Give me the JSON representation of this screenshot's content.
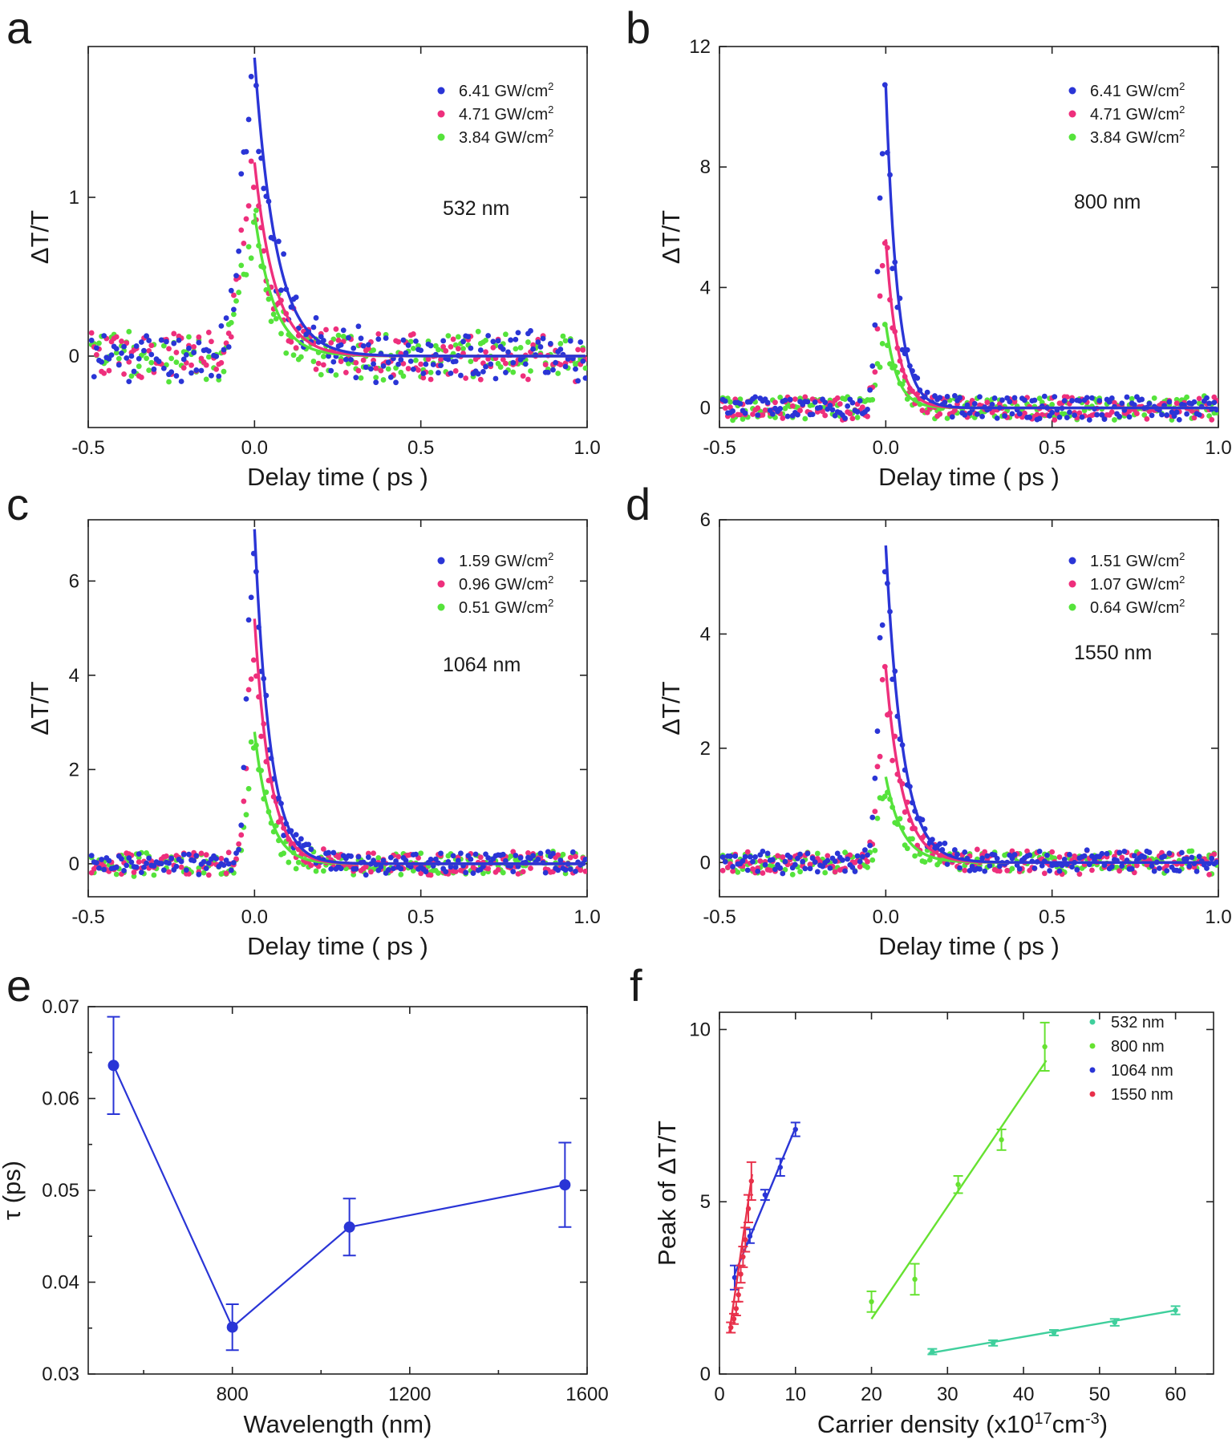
{
  "palette": {
    "blue": "#2a35d6",
    "pink": "#ee2f7c",
    "green": "#55e33b",
    "teal": "#3fcf9c",
    "lime": "#66e231",
    "red": "#e8304a",
    "axis": "#222222"
  },
  "chart_data": [
    {
      "id": "a",
      "type": "scatter",
      "panel_label": "a",
      "xlabel": "Delay time ( ps )",
      "ylabel": "ΔT/T",
      "xlim": [
        -0.5,
        1.0
      ],
      "ylim": [
        -0.45,
        1.95
      ],
      "xticks": [
        -0.5,
        0.0,
        0.5,
        1.0
      ],
      "xticklabels": [
        "-0.5",
        "0.0",
        "0.5",
        "1.0"
      ],
      "yticks": [
        0,
        1
      ],
      "yticklabels": [
        "0",
        "1"
      ],
      "wavelength_label": "532 nm",
      "series": [
        {
          "name": "6.41 GW/cm",
          "sup": "2",
          "color": "blue",
          "peak": 1.88,
          "tau": 0.065,
          "rise": 0.055,
          "noise": 0.14,
          "seed": 11
        },
        {
          "name": "4.71 GW/cm",
          "sup": "2",
          "color": "pink",
          "peak": 1.22,
          "tau": 0.062,
          "rise": 0.055,
          "noise": 0.14,
          "seed": 23
        },
        {
          "name": "3.84 GW/cm",
          "sup": "2",
          "color": "green",
          "peak": 0.9,
          "tau": 0.058,
          "rise": 0.055,
          "noise": 0.14,
          "seed": 37
        }
      ]
    },
    {
      "id": "b",
      "type": "scatter",
      "panel_label": "b",
      "xlabel": "Delay time ( ps )",
      "ylabel": "ΔT/T",
      "xlim": [
        -0.5,
        1.0
      ],
      "ylim": [
        -0.65,
        12.0
      ],
      "xticks": [
        -0.5,
        0.0,
        0.5,
        1.0
      ],
      "xticklabels": [
        "-0.5",
        "0.0",
        "0.5",
        "1.0"
      ],
      "yticks": [
        0,
        4,
        8,
        12
      ],
      "yticklabels": [
        "0",
        "4",
        "8",
        "12"
      ],
      "wavelength_label": "800 nm",
      "series": [
        {
          "name": "6.41 GW/cm",
          "sup": "2",
          "color": "blue",
          "peak": 10.7,
          "tau": 0.035,
          "rise": 0.03,
          "noise": 0.35,
          "seed": 5
        },
        {
          "name": "4.71 GW/cm",
          "sup": "2",
          "color": "pink",
          "peak": 5.6,
          "tau": 0.035,
          "rise": 0.03,
          "noise": 0.35,
          "seed": 17
        },
        {
          "name": "3.84 GW/cm",
          "sup": "2",
          "color": "green",
          "peak": 2.8,
          "tau": 0.035,
          "rise": 0.03,
          "noise": 0.35,
          "seed": 29
        }
      ]
    },
    {
      "id": "c",
      "type": "scatter",
      "panel_label": "c",
      "xlabel": "Delay time ( ps )",
      "ylabel": "ΔT/T",
      "xlim": [
        -0.5,
        1.0
      ],
      "ylim": [
        -0.7,
        7.3
      ],
      "xticks": [
        -0.5,
        0.0,
        0.5,
        1.0
      ],
      "xticklabels": [
        "-0.5",
        "0.0",
        "0.5",
        "1.0"
      ],
      "yticks": [
        0,
        2,
        4,
        6
      ],
      "yticklabels": [
        "0",
        "2",
        "4",
        "6"
      ],
      "wavelength_label": "1064 nm",
      "series": [
        {
          "name": "1.59 GW/cm",
          "sup": "2",
          "color": "blue",
          "peak": 7.1,
          "tau": 0.046,
          "rise": 0.03,
          "noise": 0.22,
          "seed": 41
        },
        {
          "name": "0.96 GW/cm",
          "sup": "2",
          "color": "pink",
          "peak": 5.2,
          "tau": 0.046,
          "rise": 0.03,
          "noise": 0.22,
          "seed": 53
        },
        {
          "name": "0.51 GW/cm",
          "sup": "2",
          "color": "green",
          "peak": 2.8,
          "tau": 0.046,
          "rise": 0.03,
          "noise": 0.22,
          "seed": 67
        }
      ]
    },
    {
      "id": "d",
      "type": "scatter",
      "panel_label": "d",
      "xlabel": "Delay time ( ps )",
      "ylabel": "ΔT/T",
      "xlim": [
        -0.5,
        1.0
      ],
      "ylim": [
        -0.6,
        6.0
      ],
      "xticks": [
        -0.5,
        0.0,
        0.5,
        1.0
      ],
      "xticklabels": [
        "-0.5",
        "0.0",
        "0.5",
        "1.0"
      ],
      "yticks": [
        0,
        2,
        4,
        6
      ],
      "yticklabels": [
        "0",
        "2",
        "4",
        "6"
      ],
      "wavelength_label": "1550 nm",
      "series": [
        {
          "name": "1.51 GW/cm",
          "sup": "2",
          "color": "blue",
          "peak": 5.55,
          "tau": 0.05,
          "rise": 0.03,
          "noise": 0.18,
          "seed": 73
        },
        {
          "name": "1.07 GW/cm",
          "sup": "2",
          "color": "pink",
          "peak": 3.4,
          "tau": 0.05,
          "rise": 0.03,
          "noise": 0.18,
          "seed": 83
        },
        {
          "name": "0.64 GW/cm",
          "sup": "2",
          "color": "green",
          "peak": 1.5,
          "tau": 0.05,
          "rise": 0.03,
          "noise": 0.18,
          "seed": 97
        }
      ]
    },
    {
      "id": "e",
      "type": "line",
      "panel_label": "e",
      "xlabel": "Wavelength (nm)",
      "ylabel": "τ (ps)",
      "xlim": [
        475,
        1600
      ],
      "ylim": [
        0.03,
        0.07
      ],
      "xticks": [
        800,
        1200,
        1600
      ],
      "xticklabels": [
        "800",
        "1200",
        "1600"
      ],
      "yticks": [
        0.03,
        0.04,
        0.05,
        0.06,
        0.07
      ],
      "yticklabels": [
        "0.03",
        "0.04",
        "0.05",
        "0.06",
        "0.07"
      ],
      "x": [
        532,
        800,
        1064,
        1550
      ],
      "y": [
        0.0636,
        0.0351,
        0.046,
        0.0506
      ],
      "yerr": [
        0.0053,
        0.0025,
        0.0031,
        0.0046
      ],
      "color": "blue"
    },
    {
      "id": "f",
      "type": "scatter",
      "panel_label": "f",
      "xlabel": "Carrier density (x10",
      "xlabel_sup1": "17",
      "xlabel_mid": "cm",
      "xlabel_sup2": "-3",
      "xlabel_end": ")",
      "ylabel": "Peak of ΔT/T",
      "xlim": [
        0,
        65
      ],
      "ylim": [
        0,
        10.5
      ],
      "xticks": [
        0,
        10,
        20,
        30,
        40,
        50,
        60
      ],
      "xticklabels": [
        "0",
        "10",
        "20",
        "30",
        "40",
        "50",
        "60"
      ],
      "yticks": [
        0,
        5,
        10
      ],
      "yticklabels": [
        "0",
        "5",
        "10"
      ],
      "series": [
        {
          "name": "532 nm",
          "color": "teal",
          "x": [
            28,
            36,
            44,
            52,
            60
          ],
          "y": [
            0.65,
            0.9,
            1.2,
            1.5,
            1.85
          ],
          "yerr": [
            0.08,
            0.08,
            0.08,
            0.1,
            0.12
          ],
          "fit": [
            [
              27.5,
              0.6
            ],
            [
              60,
              1.85
            ]
          ]
        },
        {
          "name": "800 nm",
          "color": "lime",
          "x": [
            20,
            25.7,
            31.4,
            37.1,
            42.8
          ],
          "y": [
            2.1,
            2.75,
            5.5,
            6.8,
            9.5
          ],
          "yerr": [
            0.3,
            0.45,
            0.25,
            0.3,
            0.7
          ],
          "fit": [
            [
              20,
              1.6
            ],
            [
              43,
              9.1
            ]
          ]
        },
        {
          "name": "1064 nm",
          "color": "blue",
          "x": [
            2,
            4,
            6,
            8,
            10
          ],
          "y": [
            2.8,
            4.0,
            5.2,
            6.0,
            7.1
          ],
          "yerr": [
            0.35,
            0.2,
            0.15,
            0.25,
            0.2
          ],
          "fit": [
            [
              2,
              2.9
            ],
            [
              10,
              7.15
            ]
          ]
        },
        {
          "name": "1550 nm",
          "color": "red",
          "x": [
            1.5,
            1.9,
            2.2,
            2.5,
            2.8,
            3.1,
            3.4,
            3.8,
            4.2
          ],
          "y": [
            1.35,
            1.6,
            1.9,
            2.3,
            2.9,
            3.4,
            3.9,
            4.8,
            5.6
          ],
          "yerr": [
            0.15,
            0.15,
            0.2,
            0.2,
            0.25,
            0.3,
            0.35,
            0.4,
            0.55
          ],
          "fit": [
            [
              1.3,
              1.2
            ],
            [
              4.3,
              5.8
            ]
          ]
        }
      ]
    }
  ]
}
